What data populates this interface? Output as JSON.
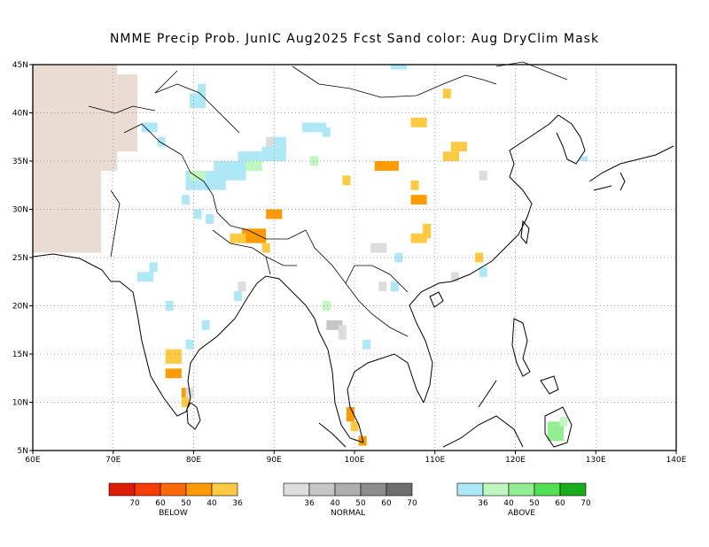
{
  "title": "NMME Precip Prob. JunIC  Aug2025 Fcst  Sand color: Aug DryClim Mask",
  "map": {
    "lon_range": [
      60,
      140
    ],
    "lat_range": [
      5,
      45
    ],
    "lon_ticks": [
      {
        "value": 60,
        "label": "60E"
      },
      {
        "value": 70,
        "label": "70E"
      },
      {
        "value": 80,
        "label": "80E"
      },
      {
        "value": 90,
        "label": "90E"
      },
      {
        "value": 100,
        "label": "100E"
      },
      {
        "value": 110,
        "label": "110E"
      },
      {
        "value": 120,
        "label": "120E"
      },
      {
        "value": 130,
        "label": "130E"
      },
      {
        "value": 140,
        "label": "140E"
      }
    ],
    "lat_ticks": [
      {
        "value": 5,
        "label": "5N"
      },
      {
        "value": 10,
        "label": "10N"
      },
      {
        "value": 15,
        "label": "15N"
      },
      {
        "value": 20,
        "label": "20N"
      },
      {
        "value": 25,
        "label": "25N"
      },
      {
        "value": 30,
        "label": "30N"
      },
      {
        "value": 35,
        "label": "35N"
      },
      {
        "value": 40,
        "label": "40N"
      },
      {
        "value": 45,
        "label": "45N"
      }
    ],
    "gridlines": true,
    "dry_mask_color": "#eadbd3",
    "dry_mask_regions": [
      {
        "lon": [
          60,
          68.5
        ],
        "lat": [
          25.5,
          45
        ]
      },
      {
        "lon": [
          68.5,
          70.5
        ],
        "lat": [
          34,
          45
        ]
      },
      {
        "lon": [
          70.5,
          73
        ],
        "lat": [
          36,
          44
        ]
      },
      {
        "lon": [
          63,
          65
        ],
        "lat": [
          26,
          30
        ]
      }
    ],
    "cells": [
      {
        "lon": 86,
        "lat": 26.5,
        "w": 3,
        "h": 1.5,
        "cat": "below",
        "level": 1
      },
      {
        "lon": 89,
        "lat": 29,
        "w": 2,
        "h": 1,
        "cat": "below",
        "level": 1
      },
      {
        "lon": 102.5,
        "lat": 34,
        "w": 3,
        "h": 1,
        "cat": "below",
        "level": 1
      },
      {
        "lon": 107,
        "lat": 30.5,
        "w": 2,
        "h": 1,
        "cat": "below",
        "level": 1
      },
      {
        "lon": 76.5,
        "lat": 12.5,
        "w": 2,
        "h": 1,
        "cat": "below",
        "level": 1
      },
      {
        "lon": 78.5,
        "lat": 10.5,
        "w": 1,
        "h": 1,
        "cat": "below",
        "level": 1
      },
      {
        "lon": 99,
        "lat": 8,
        "w": 1,
        "h": 1.5,
        "cat": "below",
        "level": 1
      },
      {
        "lon": 100.5,
        "lat": 5.5,
        "w": 1,
        "h": 1,
        "cat": "below",
        "level": 1
      },
      {
        "lon": 107,
        "lat": 38.5,
        "w": 2,
        "h": 1,
        "cat": "below",
        "level": 0
      },
      {
        "lon": 111,
        "lat": 35,
        "w": 2,
        "h": 1,
        "cat": "below",
        "level": 0
      },
      {
        "lon": 112,
        "lat": 36,
        "w": 2,
        "h": 1,
        "cat": "below",
        "level": 0
      },
      {
        "lon": 108.5,
        "lat": 27,
        "w": 1,
        "h": 1.5,
        "cat": "below",
        "level": 0
      },
      {
        "lon": 107,
        "lat": 26.5,
        "w": 2,
        "h": 1,
        "cat": "below",
        "level": 0
      },
      {
        "lon": 107,
        "lat": 32,
        "w": 1,
        "h": 1,
        "cat": "below",
        "level": 0
      },
      {
        "lon": 98.5,
        "lat": 32.5,
        "w": 1,
        "h": 1,
        "cat": "below",
        "level": 0
      },
      {
        "lon": 115,
        "lat": 24.5,
        "w": 1,
        "h": 1,
        "cat": "below",
        "level": 0
      },
      {
        "lon": 111,
        "lat": 41.5,
        "w": 1,
        "h": 1,
        "cat": "below",
        "level": 0
      },
      {
        "lon": 84.5,
        "lat": 26.5,
        "w": 2,
        "h": 1,
        "cat": "below",
        "level": 0
      },
      {
        "lon": 88.5,
        "lat": 25.5,
        "w": 1,
        "h": 1,
        "cat": "below",
        "level": 0
      },
      {
        "lon": 76.5,
        "lat": 14,
        "w": 2,
        "h": 1.5,
        "cat": "below",
        "level": 0
      },
      {
        "lon": 78.5,
        "lat": 9.5,
        "w": 1,
        "h": 1,
        "cat": "below",
        "level": 0
      },
      {
        "lon": 99.5,
        "lat": 7,
        "w": 1,
        "h": 1,
        "cat": "below",
        "level": 0
      },
      {
        "lon": 88,
        "lat": 35,
        "w": 1,
        "h": 1,
        "cat": "normal",
        "level": 0
      },
      {
        "lon": 102,
        "lat": 25.5,
        "w": 2,
        "h": 1,
        "cat": "normal",
        "level": 0
      },
      {
        "lon": 115.5,
        "lat": 33,
        "w": 1,
        "h": 1,
        "cat": "normal",
        "level": 0
      },
      {
        "lon": 96.5,
        "lat": 17.5,
        "w": 2,
        "h": 1,
        "cat": "normal",
        "level": 1
      },
      {
        "lon": 98,
        "lat": 16.5,
        "w": 1,
        "h": 1.5,
        "cat": "normal",
        "level": 0
      },
      {
        "lon": 85.5,
        "lat": 21.5,
        "w": 1,
        "h": 1,
        "cat": "normal",
        "level": 0
      },
      {
        "lon": 103,
        "lat": 21.5,
        "w": 1,
        "h": 1,
        "cat": "normal",
        "level": 0
      },
      {
        "lon": 112,
        "lat": 22.5,
        "w": 1,
        "h": 1,
        "cat": "normal",
        "level": 0
      },
      {
        "lon": 79,
        "lat": 10.5,
        "w": 1,
        "h": 1,
        "cat": "normal",
        "level": 0
      },
      {
        "lon": 79.5,
        "lat": 40.5,
        "w": 2,
        "h": 1.5,
        "cat": "above",
        "level": 0
      },
      {
        "lon": 80.5,
        "lat": 42,
        "w": 1,
        "h": 1,
        "cat": "above",
        "level": 0
      },
      {
        "lon": 73.5,
        "lat": 38,
        "w": 2,
        "h": 1,
        "cat": "above",
        "level": 0
      },
      {
        "lon": 75.5,
        "lat": 36.5,
        "w": 1,
        "h": 1,
        "cat": "above",
        "level": 0
      },
      {
        "lon": 79,
        "lat": 32,
        "w": 5,
        "h": 2,
        "cat": "above",
        "level": 0
      },
      {
        "lon": 82.5,
        "lat": 33,
        "w": 4,
        "h": 2,
        "cat": "above",
        "level": 0
      },
      {
        "lon": 85.5,
        "lat": 34,
        "w": 3,
        "h": 2,
        "cat": "above",
        "level": 0
      },
      {
        "lon": 88.5,
        "lat": 35,
        "w": 3,
        "h": 1.5,
        "cat": "above",
        "level": 0
      },
      {
        "lon": 89.5,
        "lat": 36.5,
        "w": 2,
        "h": 1,
        "cat": "above",
        "level": 0
      },
      {
        "lon": 93.5,
        "lat": 38,
        "w": 3,
        "h": 1,
        "cat": "above",
        "level": 0
      },
      {
        "lon": 96,
        "lat": 37.5,
        "w": 1,
        "h": 1,
        "cat": "above",
        "level": 0
      },
      {
        "lon": 94.5,
        "lat": 34.5,
        "w": 1,
        "h": 1,
        "cat": "above",
        "level": 1
      },
      {
        "lon": 86.5,
        "lat": 34,
        "w": 2,
        "h": 1,
        "cat": "above",
        "level": 1
      },
      {
        "lon": 79.5,
        "lat": 33,
        "w": 2,
        "h": 1,
        "cat": "above",
        "level": 1
      },
      {
        "lon": 80,
        "lat": 29,
        "w": 1,
        "h": 1,
        "cat": "above",
        "level": 0
      },
      {
        "lon": 78.5,
        "lat": 30.5,
        "w": 1,
        "h": 1,
        "cat": "above",
        "level": 0
      },
      {
        "lon": 81.5,
        "lat": 28.5,
        "w": 1,
        "h": 1,
        "cat": "above",
        "level": 0
      },
      {
        "lon": 73,
        "lat": 22.5,
        "w": 2,
        "h": 1,
        "cat": "above",
        "level": 0
      },
      {
        "lon": 74.5,
        "lat": 23.5,
        "w": 1,
        "h": 1,
        "cat": "above",
        "level": 0
      },
      {
        "lon": 76.5,
        "lat": 19.5,
        "w": 1,
        "h": 1,
        "cat": "above",
        "level": 0
      },
      {
        "lon": 81,
        "lat": 17.5,
        "w": 1,
        "h": 1,
        "cat": "above",
        "level": 0
      },
      {
        "lon": 79,
        "lat": 15.5,
        "w": 1,
        "h": 1,
        "cat": "above",
        "level": 0
      },
      {
        "lon": 96,
        "lat": 19.5,
        "w": 1,
        "h": 1,
        "cat": "above",
        "level": 1
      },
      {
        "lon": 101,
        "lat": 15.5,
        "w": 1,
        "h": 1,
        "cat": "above",
        "level": 0
      },
      {
        "lon": 105,
        "lat": 24.5,
        "w": 1,
        "h": 1,
        "cat": "above",
        "level": 0
      },
      {
        "lon": 104.5,
        "lat": 21.5,
        "w": 1,
        "h": 1,
        "cat": "above",
        "level": 0
      },
      {
        "lon": 115.5,
        "lat": 23,
        "w": 1,
        "h": 1,
        "cat": "above",
        "level": 0
      },
      {
        "lon": 104.5,
        "lat": 44.5,
        "w": 2,
        "h": 0.5,
        "cat": "above",
        "level": 0
      },
      {
        "lon": 85,
        "lat": 20.5,
        "w": 1,
        "h": 1,
        "cat": "above",
        "level": 0
      },
      {
        "lon": 89,
        "lat": 36.5,
        "w": 1,
        "h": 1,
        "cat": "normal",
        "level": 0
      },
      {
        "lon": 124,
        "lat": 6,
        "w": 2,
        "h": 2,
        "cat": "above",
        "level": 2
      },
      {
        "lon": 125.5,
        "lat": 7.5,
        "w": 1,
        "h": 1,
        "cat": "above",
        "level": 1
      },
      {
        "lon": 128,
        "lat": 35,
        "w": 1,
        "h": 0.5,
        "cat": "above",
        "level": 0
      }
    ]
  },
  "legend": {
    "groups": [
      {
        "name": "BELOW",
        "colors": [
          "#dd1c05",
          "#f53d05",
          "#fb6a07",
          "#fe9b02",
          "#feca43"
        ],
        "labels": [
          "70",
          "60",
          "50",
          "40",
          "36"
        ]
      },
      {
        "name": "NORMAL",
        "colors": [
          "#dddddd",
          "#c6c6c6",
          "#aeaeae",
          "#8c8c8c",
          "#6e6e6e"
        ],
        "labels": [
          "36",
          "40",
          "50",
          "60",
          "70"
        ]
      },
      {
        "name": "ABOVE",
        "colors": [
          "#aee8f6",
          "#c0f7c0",
          "#93ee93",
          "#52e052",
          "#1aac1a"
        ],
        "labels": [
          "36",
          "40",
          "50",
          "60",
          "70"
        ]
      }
    ]
  }
}
